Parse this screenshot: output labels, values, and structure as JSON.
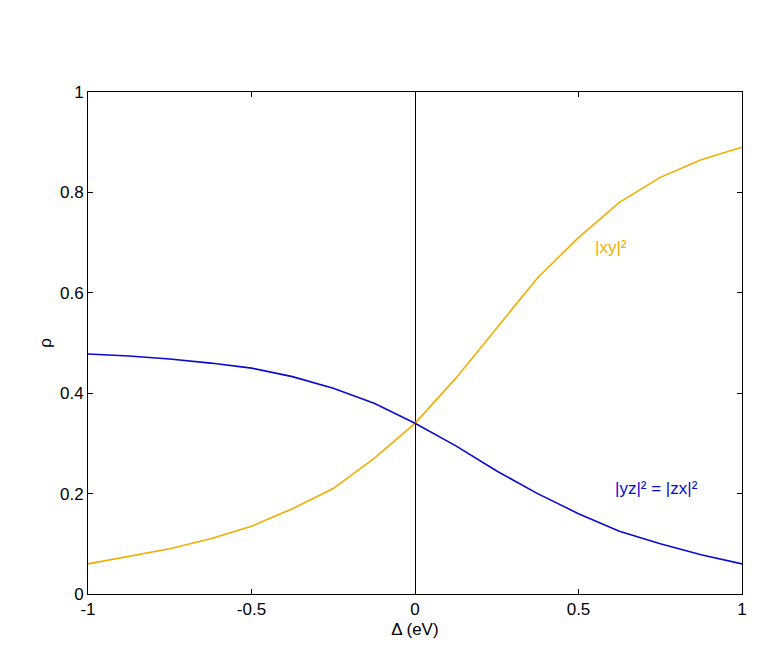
{
  "chart_data": {
    "type": "line",
    "x_label": "Δ (eV)",
    "y_label": "ρ",
    "x": [
      -1,
      -0.875,
      -0.75,
      -0.625,
      -0.5,
      -0.375,
      -0.25,
      -0.125,
      0,
      0.125,
      0.25,
      0.375,
      0.5,
      0.625,
      0.75,
      0.875,
      1
    ],
    "series": [
      {
        "name": "|xy|²",
        "color": "#f2ae00",
        "values": [
          0.06,
          0.075,
          0.09,
          0.11,
          0.135,
          0.17,
          0.21,
          0.27,
          0.34,
          0.43,
          0.53,
          0.63,
          0.71,
          0.78,
          0.83,
          0.865,
          0.89
        ]
      },
      {
        "name": "|yz|² = |zx|²",
        "color": "#0a0ad2",
        "values": [
          0.478,
          0.474,
          0.468,
          0.46,
          0.45,
          0.433,
          0.41,
          0.38,
          0.34,
          0.295,
          0.245,
          0.2,
          0.16,
          0.125,
          0.1,
          0.078,
          0.06
        ]
      }
    ],
    "annotations": [
      {
        "text": "|xy|²",
        "x": 0.6,
        "y": 0.69,
        "color": "#f2ae00"
      },
      {
        "text": "|yz|² = |zx|²",
        "x": 0.74,
        "y": 0.21,
        "color": "#0a0ad2"
      }
    ],
    "xlim": [
      -1,
      1
    ],
    "xticks": [
      -1,
      -0.5,
      0,
      0.5,
      1
    ],
    "ylim": [
      0,
      1
    ],
    "yticks": [
      0,
      0.2,
      0.4,
      0.6,
      0.8,
      1
    ],
    "grid": false
  }
}
